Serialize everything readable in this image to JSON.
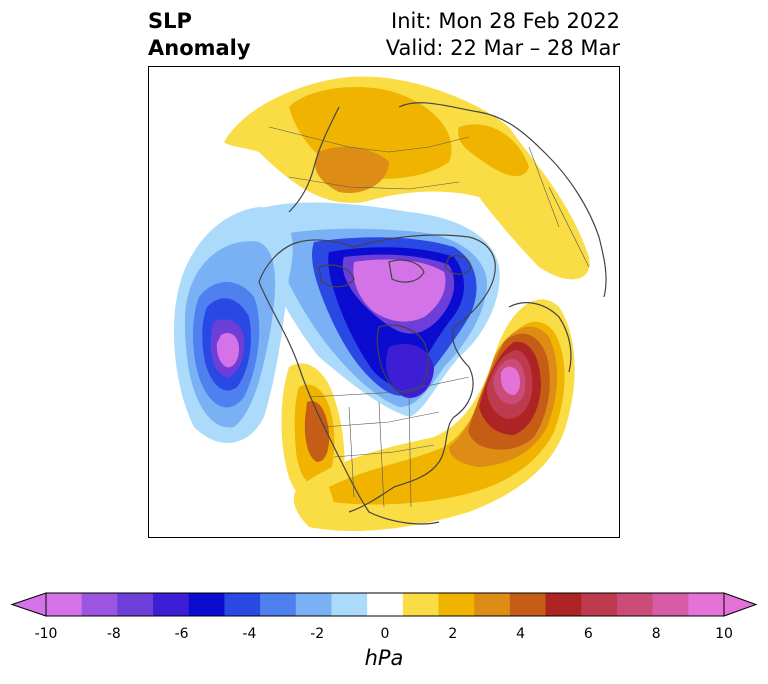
{
  "title": {
    "left_line1": "SLP",
    "left_line2": "Anomaly",
    "right_line1": "Init: Mon 28 Feb 2022",
    "right_line2": "Valid: 22 Mar – 28 Mar"
  },
  "colorbar": {
    "units": "hPa",
    "ticks": [
      "-10",
      "-8",
      "-6",
      "-4",
      "-2",
      "0",
      "2",
      "4",
      "6",
      "8",
      "10"
    ],
    "colors": [
      "#d473e8",
      "#9b55e0",
      "#6e3fd8",
      "#3d1ed5",
      "#0b0cd0",
      "#2a48e3",
      "#4f80ef",
      "#79b1f4",
      "#acdafb",
      "#ffffff",
      "#fadc45",
      "#f0b400",
      "#dd8c16",
      "#c55d17",
      "#ae2424",
      "#be3a4f",
      "#cb4c78",
      "#d65ca6",
      "#e572d6"
    ],
    "under_color": "#d473e8",
    "over_color": "#e572d6"
  },
  "map": {
    "region": "Northern Hemisphere polar stereographic",
    "anomalies": [
      {
        "name": "pacific-low",
        "value": -10,
        "color": "#d473e8"
      },
      {
        "name": "arctic-canada-low",
        "value": -10,
        "color": "#d473e8"
      },
      {
        "name": "hudson-bay-low",
        "value": -6,
        "color": "#0b0cd0"
      },
      {
        "name": "north-atlantic-high",
        "value": 10,
        "color": "#e572d6"
      },
      {
        "name": "siberia-high",
        "value": 4,
        "color": "#dd8c16"
      },
      {
        "name": "western-us-high",
        "value": 4,
        "color": "#c55d17"
      },
      {
        "name": "eastern-us-high",
        "value": 2,
        "color": "#f0b400"
      }
    ]
  }
}
